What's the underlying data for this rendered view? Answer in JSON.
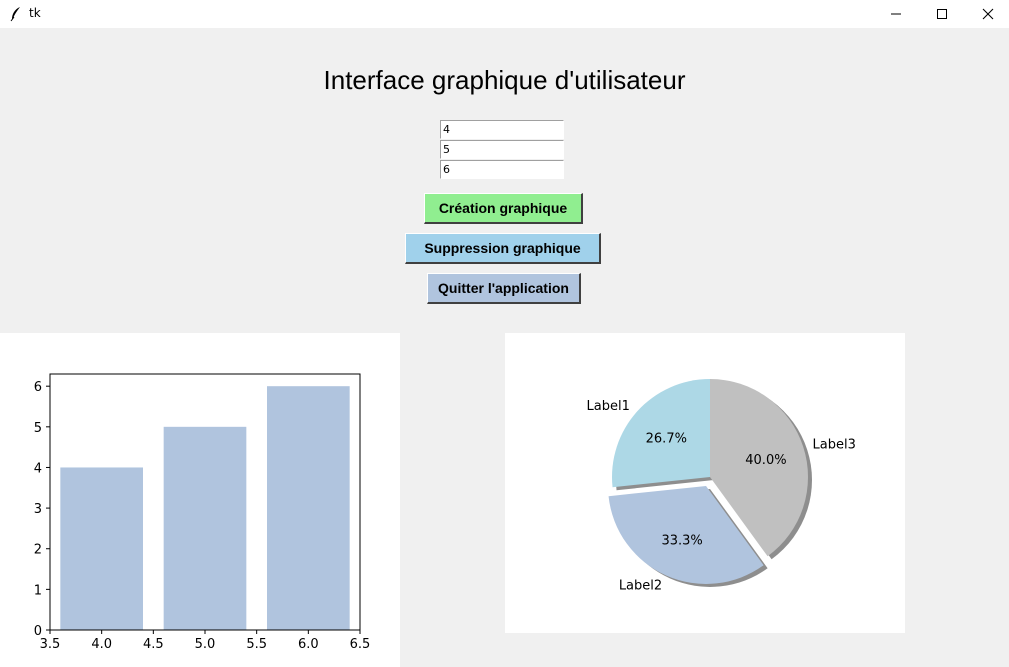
{
  "window": {
    "title": "tk",
    "icon": "feather-icon",
    "controls": [
      "minimize-icon",
      "maximize-icon",
      "close-icon"
    ]
  },
  "app": {
    "title": "Interface graphique d'utilisateur",
    "entries": [
      "4",
      "5",
      "6"
    ],
    "buttons": {
      "create": "Création graphique",
      "delete": "Suppression graphique",
      "quit": "Quitter l'application"
    },
    "colors": {
      "create_button": "#90ee90",
      "delete_button": "#a0d1eb",
      "quit_button": "#b0c4de"
    }
  },
  "chart_data": [
    {
      "type": "bar",
      "x": [
        4,
        5,
        6
      ],
      "values": [
        4,
        5,
        6
      ],
      "color": "#b0c4de",
      "xlim": [
        3.5,
        6.5
      ],
      "ylim": [
        0,
        6.3
      ],
      "xticks": [
        "3.5",
        "4.0",
        "4.5",
        "5.0",
        "5.5",
        "6.0",
        "6.5"
      ],
      "yticks": [
        "0",
        "1",
        "2",
        "3",
        "4",
        "5",
        "6"
      ],
      "grid": false
    },
    {
      "type": "pie",
      "slices": [
        {
          "label": "Label1",
          "value": 4,
          "pct": "26.7%",
          "color": "#add8e6",
          "explode": 0
        },
        {
          "label": "Label2",
          "value": 5,
          "pct": "33.3%",
          "color": "#b0c4de",
          "explode": 0.1
        },
        {
          "label": "Label3",
          "value": 6,
          "pct": "40.0%",
          "color": "#c0c0c0",
          "explode": 0
        }
      ],
      "start_angle": 90,
      "shadow": true
    }
  ]
}
